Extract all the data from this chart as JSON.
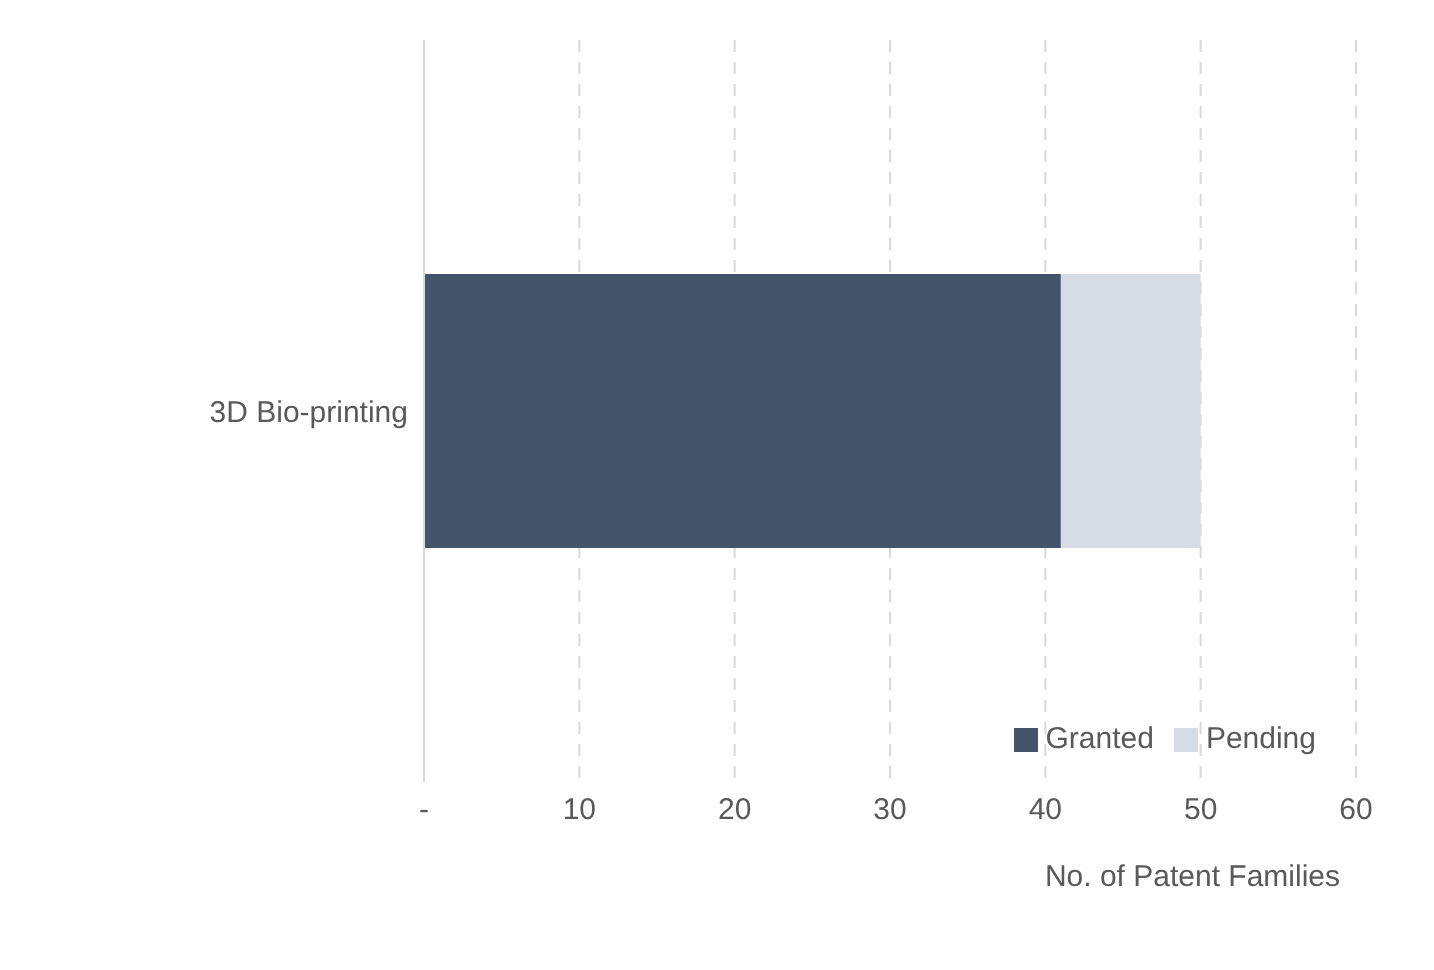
{
  "chart_data": {
    "type": "bar",
    "orientation": "horizontal",
    "stacked": true,
    "categories": [
      "3D Bio-printing"
    ],
    "series": [
      {
        "name": "Granted",
        "color": "#44546a",
        "values": [
          41
        ]
      },
      {
        "name": "Pending",
        "color": "#d6dce5",
        "values": [
          9
        ]
      }
    ],
    "xlabel": "No. of Patent Families",
    "xlim": [
      0,
      60
    ],
    "xticks": [
      {
        "value": 0,
        "label": "-"
      },
      10,
      20,
      30,
      40,
      50,
      60
    ],
    "grid": "x",
    "legend": "bottom right"
  }
}
